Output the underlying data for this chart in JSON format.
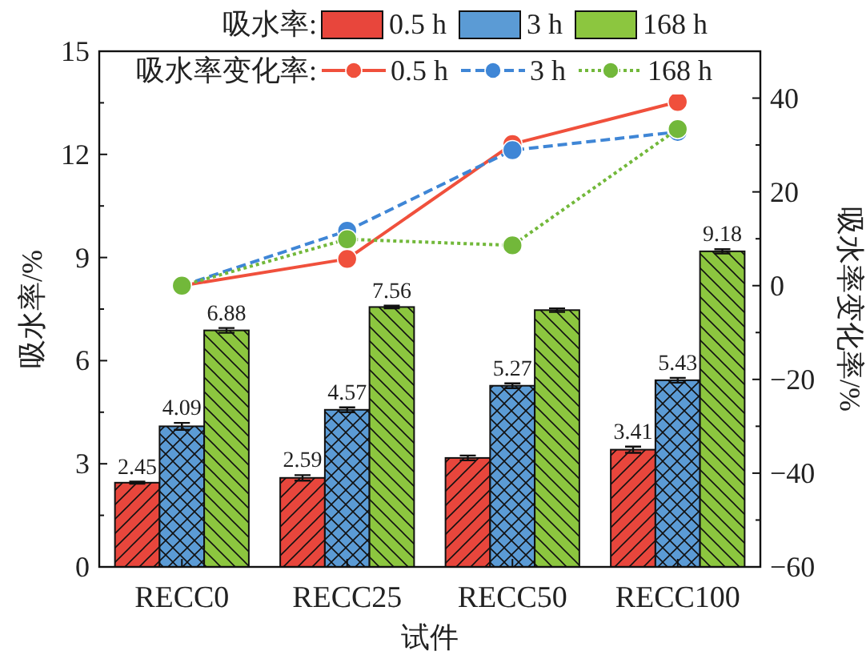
{
  "chart_data": {
    "type": "bar",
    "xlabel": "试件",
    "ylabel": "吸水率/%",
    "y2label": "吸水率变化率/%",
    "categories": [
      "RECC0",
      "RECC25",
      "RECC50",
      "RECC100"
    ],
    "ylim": [
      0,
      15
    ],
    "yticks": [
      0,
      3,
      6,
      9,
      12,
      15
    ],
    "y2lim": [
      -60,
      50
    ],
    "y2ticks": [
      -60,
      -40,
      -20,
      0,
      20,
      40
    ],
    "legend": "top",
    "grid": false,
    "annotations": [
      "吸水率:",
      "吸水率变化率:"
    ],
    "series": [
      {
        "name": "0.5 h",
        "color": "#e8463c",
        "values": [
          2.45,
          2.59,
          3.17,
          3.41
        ],
        "errors": [
          0.03,
          0.08,
          0.07,
          0.09
        ],
        "value_labels": [
          "2.45",
          "2.59",
          null,
          "3.41"
        ]
      },
      {
        "name": "3 h",
        "color": "#5b9bd5",
        "values": [
          4.09,
          4.57,
          5.27,
          5.43
        ],
        "errors": [
          0.1,
          0.07,
          0.07,
          0.07
        ],
        "value_labels": [
          "4.09",
          "4.57",
          "5.27",
          "5.43"
        ]
      },
      {
        "name": "168 h",
        "color": "#8cc63f",
        "values": [
          6.88,
          7.56,
          7.47,
          9.18
        ],
        "errors": [
          0.07,
          0.04,
          0.05,
          0.06
        ],
        "value_labels": [
          "6.88",
          "7.56",
          null,
          "9.18"
        ]
      },
      {
        "type": "line",
        "axis": "y2",
        "name": "0.5 h",
        "color": "#f0503c",
        "line_style": "solid",
        "marker": "circle",
        "values": [
          0,
          5.7,
          30.2,
          39.2
        ]
      },
      {
        "type": "line",
        "axis": "y2",
        "name": "3 h",
        "color": "#3f86d6",
        "line_style": "dashed",
        "marker": "circle",
        "values": [
          0,
          11.7,
          28.9,
          32.8
        ]
      },
      {
        "type": "line",
        "axis": "y2",
        "name": "168 h",
        "color": "#72b83a",
        "line_style": "dotted",
        "marker": "circle",
        "values": [
          0,
          9.9,
          8.6,
          33.4
        ]
      }
    ]
  }
}
